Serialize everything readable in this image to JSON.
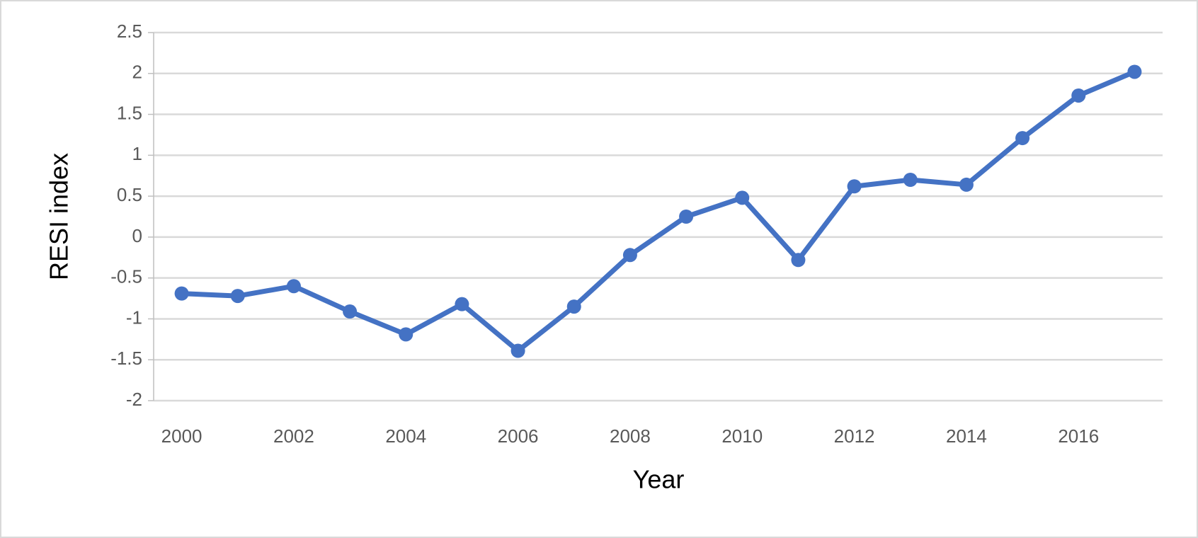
{
  "chart_data": {
    "type": "line",
    "x_label": "Year",
    "y_label": "RESI index",
    "categories": [
      "2000",
      null,
      "2002",
      null,
      "2004",
      null,
      "2006",
      null,
      "2008",
      null,
      "2010",
      null,
      "2012",
      null,
      "2014",
      null,
      "2016",
      null
    ],
    "series": [
      {
        "name": "RESI index",
        "color": "#4472c4",
        "values": [
          -0.69,
          -0.72,
          -0.6,
          -0.91,
          -1.19,
          -0.82,
          -1.39,
          -0.85,
          -0.22,
          0.25,
          0.48,
          -0.28,
          0.62,
          0.7,
          0.64,
          1.21,
          1.73,
          2.02
        ]
      }
    ],
    "ylim": [
      -2,
      2.5
    ],
    "yticks": [
      -2,
      -1.5,
      -1,
      -0.5,
      0,
      0.5,
      1,
      1.5,
      2,
      2.5
    ],
    "grid": true
  }
}
